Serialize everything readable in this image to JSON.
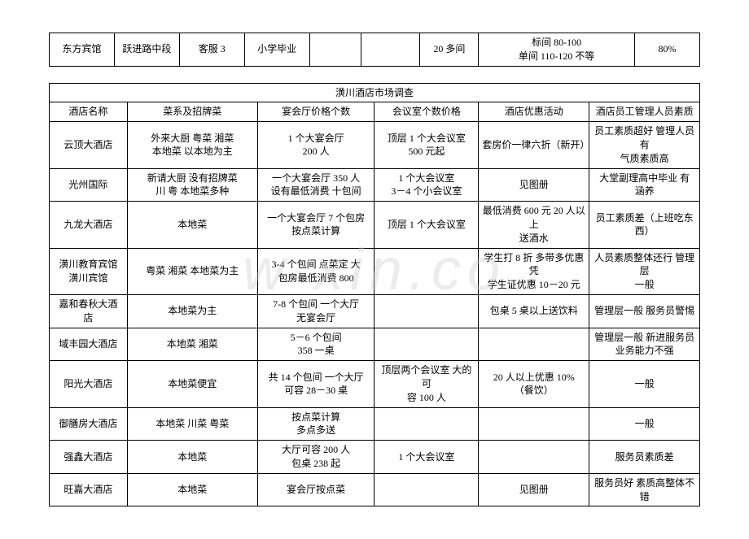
{
  "watermark_text": "w xin.co",
  "table1": {
    "columns": [
      "c1",
      "c2",
      "c3",
      "c4",
      "c5",
      "c6",
      "c7",
      "c8",
      "c9"
    ],
    "col_widths_pct": [
      10,
      10,
      10,
      10,
      8,
      9,
      9,
      24,
      10
    ],
    "rows": [
      [
        "东方宾馆",
        "跃进路中段",
        "客服 3",
        "小学毕业",
        "",
        "",
        "20 多间",
        "标间 80-100\n单间 110-120  不等",
        "80%"
      ]
    ]
  },
  "table2": {
    "title": "潢川酒店市场调查",
    "columns": [
      "酒店名称",
      "菜系及招牌菜",
      "宴会厅价格个数",
      "会议室个数价格",
      "酒店优惠活动",
      "酒店员工管理人员素质"
    ],
    "col_widths_pct": [
      12,
      20,
      18,
      16,
      17,
      17
    ],
    "rows": [
      [
        "云顶大酒店",
        "外来大厨  粤菜 湘菜\n本地菜  以本地为主",
        "1 个大宴会厅\n200 人",
        "顶层 1 个大会议室\n500 元起",
        "套房价一律六折（新开）",
        "员工素质超好  管理人员有\n气质素质高"
      ],
      [
        "光州国际",
        "新请大厨  没有招牌菜\n川  粤  本地菜多种",
        "一个大宴会厅    350 人\n设有最低消费  十包间",
        "1 个大会议室\n3－4 个小会议室",
        "见图册",
        "大堂副理高中毕业  有\n涵养"
      ],
      [
        "九龙大酒店",
        "本地菜",
        "一个大宴会厅 7 个包房\n按点菜计算",
        "顶层 1 个大会议室",
        "最低消费 600 元  20 人以上\n送酒水",
        "员工素质差（上班吃东西）"
      ],
      [
        "潢川教育宾馆\n潢川宾馆",
        "粤菜  湘菜  本地菜为主",
        "3-4 个包间 点菜定    大\n包房最低消费 800",
        "",
        "学生打 8 折  多带多优惠 凭\n学生证优惠 10－20 元",
        "人员素质整体还行  管理层\n一般"
      ],
      [
        "嘉和春秋大酒\n店",
        "本地菜为主",
        "7-8 个包间  一个大厅\n无宴会厅",
        "",
        "包桌 5 桌以上送饮料",
        "管理层一般  服务员警惕"
      ],
      [
        "域丰园大酒店",
        "本地菜  湘菜",
        "5－6 个包间\n358 一桌",
        "",
        "",
        "管理层一般  新进服务员\n业务能力不强"
      ],
      [
        "阳光大酒店",
        "本地菜便宜",
        "共 14 个包间  一个大厅\n可容 28－30 桌",
        "顶层两个会议室  大的可\n容 100 人",
        "20 人以上优惠  10%\n（餐饮）",
        "一般"
      ],
      [
        "御膳房大酒店",
        "本地菜  川菜  粤菜",
        "按点菜计算\n多点多送",
        "",
        "",
        "一般"
      ],
      [
        "强鑫大酒店",
        "本地菜",
        "大厅可容 200 人\n包桌 238 起",
        "1 个大会议室",
        "",
        "服务员素质差"
      ],
      [
        "旺嘉大酒店",
        "本地菜",
        "宴会厅按点菜",
        "",
        "见图册",
        "服务员好  素质高整体不错"
      ]
    ]
  }
}
